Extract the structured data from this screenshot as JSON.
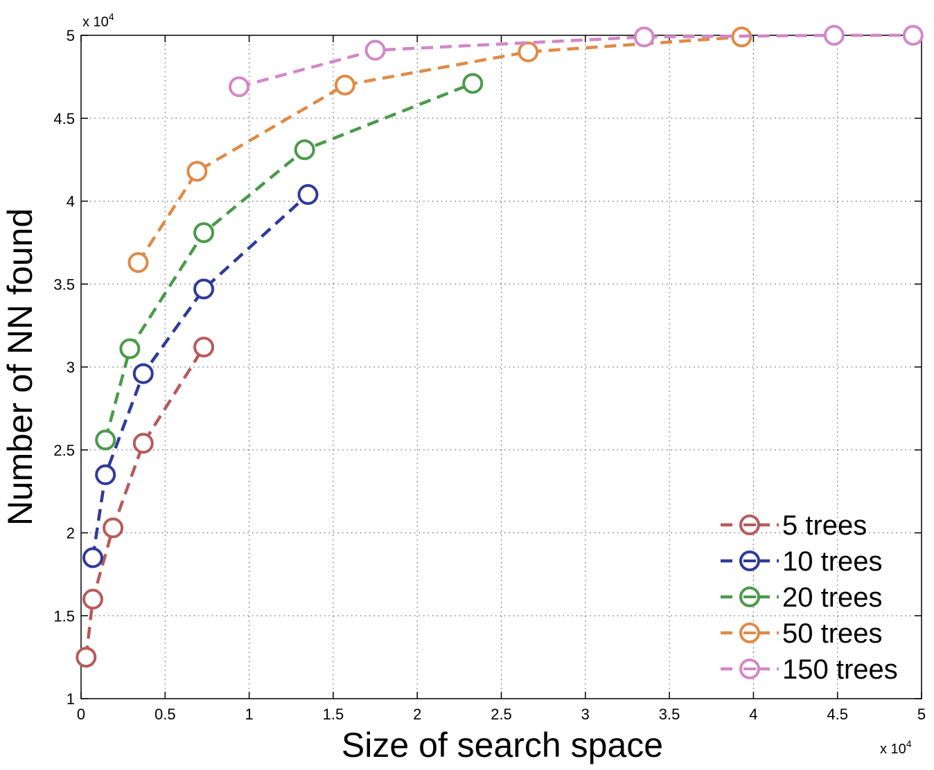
{
  "chart_data": {
    "type": "line",
    "title": "",
    "xlabel": "Size of search space",
    "ylabel": "Number of NN found",
    "x_multiplier": {
      "base": "x 10",
      "exp": "4"
    },
    "y_multiplier": {
      "base": "x 10",
      "exp": "4"
    },
    "xlim": [
      0,
      5
    ],
    "ylim": [
      1,
      5
    ],
    "x_ticks": [
      0,
      0.5,
      1,
      1.5,
      2,
      2.5,
      3,
      3.5,
      4,
      4.5,
      5
    ],
    "x_tick_labels": [
      "0",
      "0.5",
      "1",
      "1.5",
      "2",
      "2.5",
      "3",
      "3.5",
      "4",
      "4.5",
      "5"
    ],
    "y_ticks": [
      1,
      1.5,
      2,
      2.5,
      3,
      3.5,
      4,
      4.5,
      5
    ],
    "y_tick_labels": [
      "1",
      "1.5",
      "2",
      "2.5",
      "3",
      "3.5",
      "4",
      "4.5",
      "5"
    ],
    "grid": true,
    "legend_position": "bottom-right",
    "marker": "open-circle",
    "line_style": "dashed",
    "series": [
      {
        "name": "5 trees",
        "color": "#b85a5a",
        "x": [
          0.03,
          0.07,
          0.19,
          0.37,
          0.73
        ],
        "y": [
          1.25,
          1.6,
          2.03,
          2.54,
          3.12
        ]
      },
      {
        "name": "10 trees",
        "color": "#2e3a9c",
        "x": [
          0.07,
          0.145,
          0.37,
          0.73,
          1.35
        ],
        "y": [
          1.85,
          2.35,
          2.96,
          3.47,
          4.04
        ]
      },
      {
        "name": "20 trees",
        "color": "#4a9a4a",
        "x": [
          0.145,
          0.29,
          0.73,
          1.33,
          2.33
        ],
        "y": [
          2.56,
          3.11,
          3.81,
          4.31,
          4.71
        ]
      },
      {
        "name": "50 trees",
        "color": "#e08a45",
        "x": [
          0.34,
          0.69,
          1.57,
          2.66,
          3.93
        ],
        "y": [
          3.63,
          4.18,
          4.7,
          4.9,
          4.99
        ]
      },
      {
        "name": "150 trees",
        "color": "#d288c8",
        "x": [
          0.94,
          1.75,
          3.35,
          4.48,
          4.95
        ],
        "y": [
          4.69,
          4.91,
          4.99,
          5.0,
          5.0
        ]
      }
    ]
  }
}
